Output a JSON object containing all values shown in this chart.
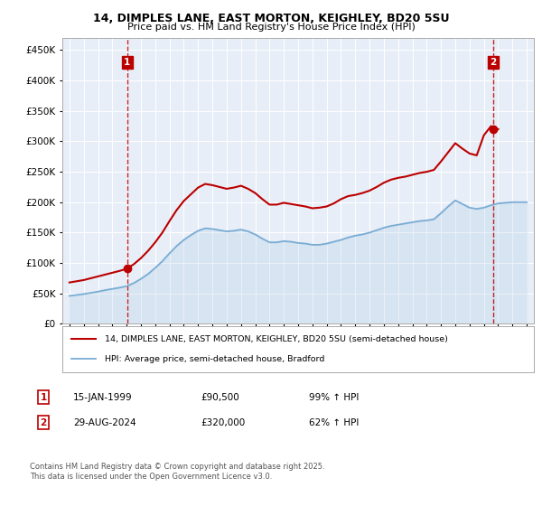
{
  "title1": "14, DIMPLES LANE, EAST MORTON, KEIGHLEY, BD20 5SU",
  "title2": "Price paid vs. HM Land Registry's House Price Index (HPI)",
  "legend_red": "14, DIMPLES LANE, EAST MORTON, KEIGHLEY, BD20 5SU (semi-detached house)",
  "legend_blue": "HPI: Average price, semi-detached house, Bradford",
  "annotation1_date": "15-JAN-1999",
  "annotation1_price": "£90,500",
  "annotation1_hpi": "99% ↑ HPI",
  "annotation2_date": "29-AUG-2024",
  "annotation2_price": "£320,000",
  "annotation2_hpi": "62% ↑ HPI",
  "footer": "Contains HM Land Registry data © Crown copyright and database right 2025.\nThis data is licensed under the Open Government Licence v3.0.",
  "red_color": "#bb0000",
  "blue_color": "#7aadd4",
  "background_chart": "#e8eef8",
  "ylim": [
    0,
    470000
  ],
  "yticks": [
    0,
    50000,
    100000,
    150000,
    200000,
    250000,
    300000,
    350000,
    400000,
    450000
  ],
  "sale1_x": 1999.04,
  "sale1_y": 90500,
  "sale2_x": 2024.66,
  "sale2_y": 320000,
  "years_hpi": [
    1995.0,
    1995.5,
    1996.0,
    1996.5,
    1997.0,
    1997.5,
    1998.0,
    1998.5,
    1999.0,
    1999.5,
    2000.0,
    2000.5,
    2001.0,
    2001.5,
    2002.0,
    2002.5,
    2003.0,
    2003.5,
    2004.0,
    2004.5,
    2005.0,
    2005.5,
    2006.0,
    2006.5,
    2007.0,
    2007.5,
    2008.0,
    2008.5,
    2009.0,
    2009.5,
    2010.0,
    2010.5,
    2011.0,
    2011.5,
    2012.0,
    2012.5,
    2013.0,
    2013.5,
    2014.0,
    2014.5,
    2015.0,
    2015.5,
    2016.0,
    2016.5,
    2017.0,
    2017.5,
    2018.0,
    2018.5,
    2019.0,
    2019.5,
    2020.0,
    2020.5,
    2021.0,
    2021.5,
    2022.0,
    2022.5,
    2023.0,
    2023.5,
    2024.0,
    2024.5,
    2025.0,
    2025.5,
    2026.0,
    2026.5,
    2027.0
  ],
  "hpi_values": [
    46000,
    47500,
    49000,
    51000,
    53000,
    55500,
    57500,
    59500,
    62000,
    67000,
    74000,
    82000,
    92000,
    103000,
    116000,
    128000,
    138000,
    146000,
    153000,
    157000,
    156000,
    154000,
    152000,
    153000,
    155000,
    152000,
    147000,
    140000,
    134000,
    134000,
    136000,
    135000,
    133000,
    132000,
    130000,
    130000,
    132000,
    135000,
    138000,
    142000,
    145000,
    147000,
    150000,
    154000,
    158000,
    161000,
    163000,
    165000,
    167000,
    169000,
    170000,
    172000,
    182000,
    193000,
    203000,
    197000,
    191000,
    189000,
    191000,
    195000,
    198000,
    199000,
    200000,
    200000,
    200000
  ],
  "years_red": [
    1995.0,
    1995.5,
    1996.0,
    1996.5,
    1997.0,
    1997.5,
    1998.0,
    1998.5,
    1999.0,
    1999.5,
    2000.0,
    2000.5,
    2001.0,
    2001.5,
    2002.0,
    2002.5,
    2003.0,
    2003.5,
    2004.0,
    2004.5,
    2005.0,
    2005.5,
    2006.0,
    2006.5,
    2007.0,
    2007.5,
    2008.0,
    2008.5,
    2009.0,
    2009.5,
    2010.0,
    2010.5,
    2011.0,
    2011.5,
    2012.0,
    2012.5,
    2013.0,
    2013.5,
    2014.0,
    2014.5,
    2015.0,
    2015.5,
    2016.0,
    2016.5,
    2017.0,
    2017.5,
    2018.0,
    2018.5,
    2019.0,
    2019.5,
    2020.0,
    2020.5,
    2021.0,
    2021.5,
    2022.0,
    2022.5,
    2023.0,
    2023.5,
    2024.0,
    2024.5,
    2025.0
  ],
  "red_values": [
    68000,
    70000,
    72000,
    75000,
    78000,
    81000,
    84000,
    87000,
    90500,
    98000,
    108000,
    120000,
    134000,
    150000,
    169000,
    187000,
    202000,
    213000,
    224000,
    230000,
    228000,
    225000,
    222000,
    224000,
    227000,
    222000,
    215000,
    205000,
    196000,
    196000,
    199000,
    197000,
    195000,
    193000,
    190000,
    191000,
    193000,
    198000,
    205000,
    210000,
    212000,
    215000,
    219000,
    225000,
    232000,
    237000,
    240000,
    242000,
    245000,
    248000,
    250000,
    253000,
    267000,
    282000,
    297000,
    288000,
    280000,
    277000,
    310000,
    325000,
    320000
  ],
  "xlim": [
    1994.5,
    2027.5
  ],
  "x_start": 1995,
  "x_end": 2027
}
